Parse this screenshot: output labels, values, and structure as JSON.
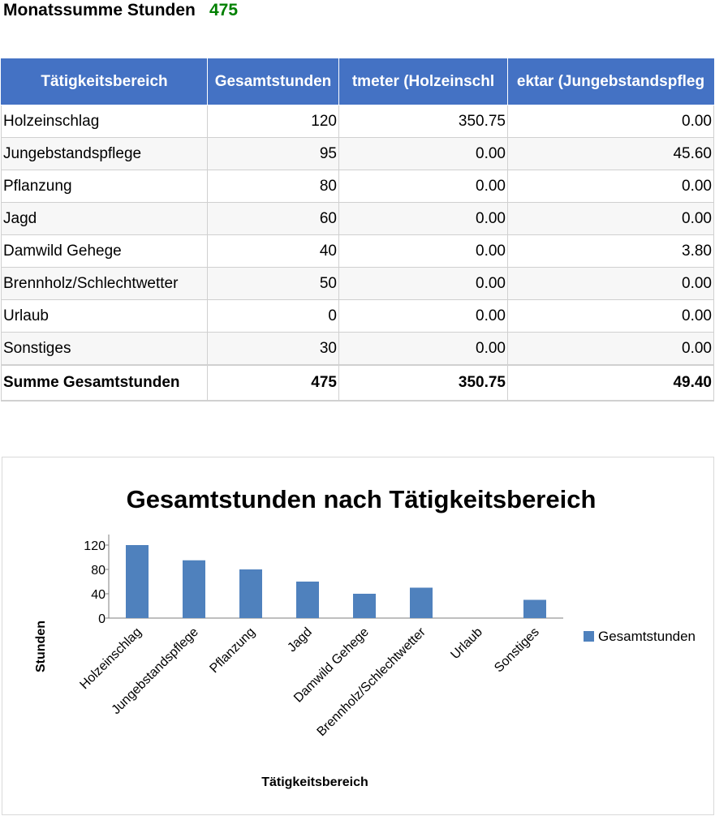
{
  "summary": {
    "label": "Monatssumme Stunden",
    "value": "475"
  },
  "table": {
    "headers": [
      "Tätigkeitsbereich",
      "Gesamtstunden",
      "Festmeter (Holzeinschlag)",
      "Hektar (Jungebstandspflege)"
    ],
    "header_visible": [
      "Tätigkeitsbereich",
      "Gesamtstunden",
      "tmeter (Holzeinschl",
      "ektar (Jungebstandspfleg"
    ],
    "rows": [
      [
        "Holzeinschlag",
        "120",
        "350.75",
        "0.00"
      ],
      [
        "Jungebstandspflege",
        "95",
        "0.00",
        "45.60"
      ],
      [
        "Pflanzung",
        "80",
        "0.00",
        "0.00"
      ],
      [
        "Jagd",
        "60",
        "0.00",
        "0.00"
      ],
      [
        "Damwild Gehege",
        "40",
        "0.00",
        "3.80"
      ],
      [
        "Brennholz/Schlechtwetter",
        "50",
        "0.00",
        "0.00"
      ],
      [
        "Urlaub",
        "0",
        "0.00",
        "0.00"
      ],
      [
        "Sonstiges",
        "30",
        "0.00",
        "0.00"
      ]
    ],
    "total": [
      "Summe Gesamtstunden",
      "475",
      "350.75",
      "49.40"
    ]
  },
  "colors": {
    "header_bg": "#4472c4",
    "bar": "#4f81bd",
    "summary_value": "#008000"
  },
  "chart_data": {
    "type": "bar",
    "title": "Gesamtstunden nach Tätigkeitsbereich",
    "xlabel": "Tätigkeitsbereich",
    "ylabel": "Stunden",
    "categories": [
      "Holzeinschlag",
      "Jungebstandspflege",
      "Pflanzung",
      "Jagd",
      "Damwild Gehege",
      "Brennholz/Schlechtwetter",
      "Urlaub",
      "Sonstiges"
    ],
    "series": [
      {
        "name": "Gesamtstunden",
        "values": [
          120,
          95,
          80,
          60,
          40,
          50,
          0,
          30
        ]
      }
    ],
    "yticks": [
      0,
      40,
      80,
      120
    ],
    "ylim": [
      0,
      135
    ],
    "legend": "right",
    "grid": false
  }
}
